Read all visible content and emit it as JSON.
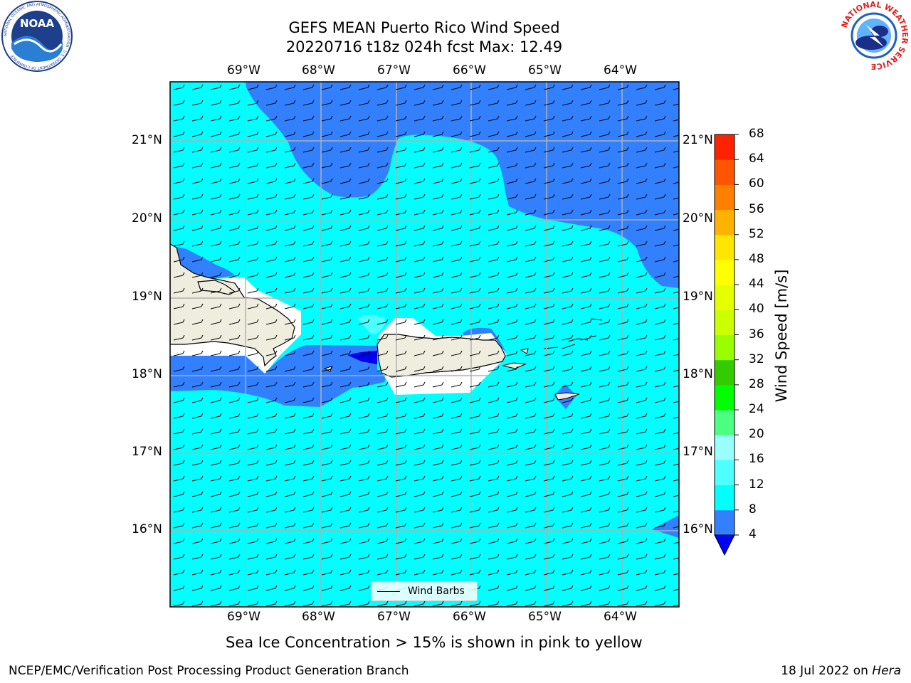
{
  "title": {
    "line1": "GEFS MEAN Puerto Rico Wind Speed",
    "line2": "20220716 t18z 024h fcst   Max: 12.49"
  },
  "logos": {
    "noaa": {
      "icon": "noaa-logo",
      "center_text": "NOAA",
      "ring_text": "NATIONAL OCEANIC AND ATMOSPHERIC ADMINISTRATION · U.S. DEPARTMENT OF COMMERCE"
    },
    "nws": {
      "icon": "nws-logo",
      "ring_text": "NATIONAL WEATHER SERVICE"
    }
  },
  "map": {
    "longitude_ticks": [
      "69°W",
      "68°W",
      "67°W",
      "66°W",
      "65°W",
      "64°W"
    ],
    "latitude_ticks": [
      "21°N",
      "20°N",
      "19°N",
      "18°N",
      "17°N",
      "16°N"
    ],
    "legend_label": "Wind Barbs",
    "gridlines": true,
    "land_color": "#efedde",
    "colors": {
      "band_4_8": "#3380ff",
      "band_8_12": "#00ffff",
      "band_12_16": "#4dffff",
      "below_4": "#0000ee",
      "coast": "#000000",
      "grid": "#b0b0b0"
    }
  },
  "colorbar": {
    "label": "Wind Speed [m/s]",
    "ticks": [
      "4",
      "8",
      "12",
      "16",
      "20",
      "24",
      "28",
      "32",
      "36",
      "40",
      "44",
      "48",
      "52",
      "56",
      "60",
      "64",
      "68"
    ],
    "colors": [
      "#3380ff",
      "#00ffff",
      "#4dffff",
      "#99ffff",
      "#4dff80",
      "#00ff00",
      "#33cc00",
      "#99ff00",
      "#ccff00",
      "#e6ff00",
      "#ffff00",
      "#ffe600",
      "#ffb300",
      "#ff8000",
      "#ff5500",
      "#ff2200"
    ],
    "extend_color": "#0000ff"
  },
  "note": "Sea Ice Concentration > 15% is shown in pink to yellow",
  "footer": {
    "left": "NCEP/EMC/Verification Post Processing Product Generation Branch",
    "date": "18 Jul 2022 on ",
    "host": "Hera"
  }
}
